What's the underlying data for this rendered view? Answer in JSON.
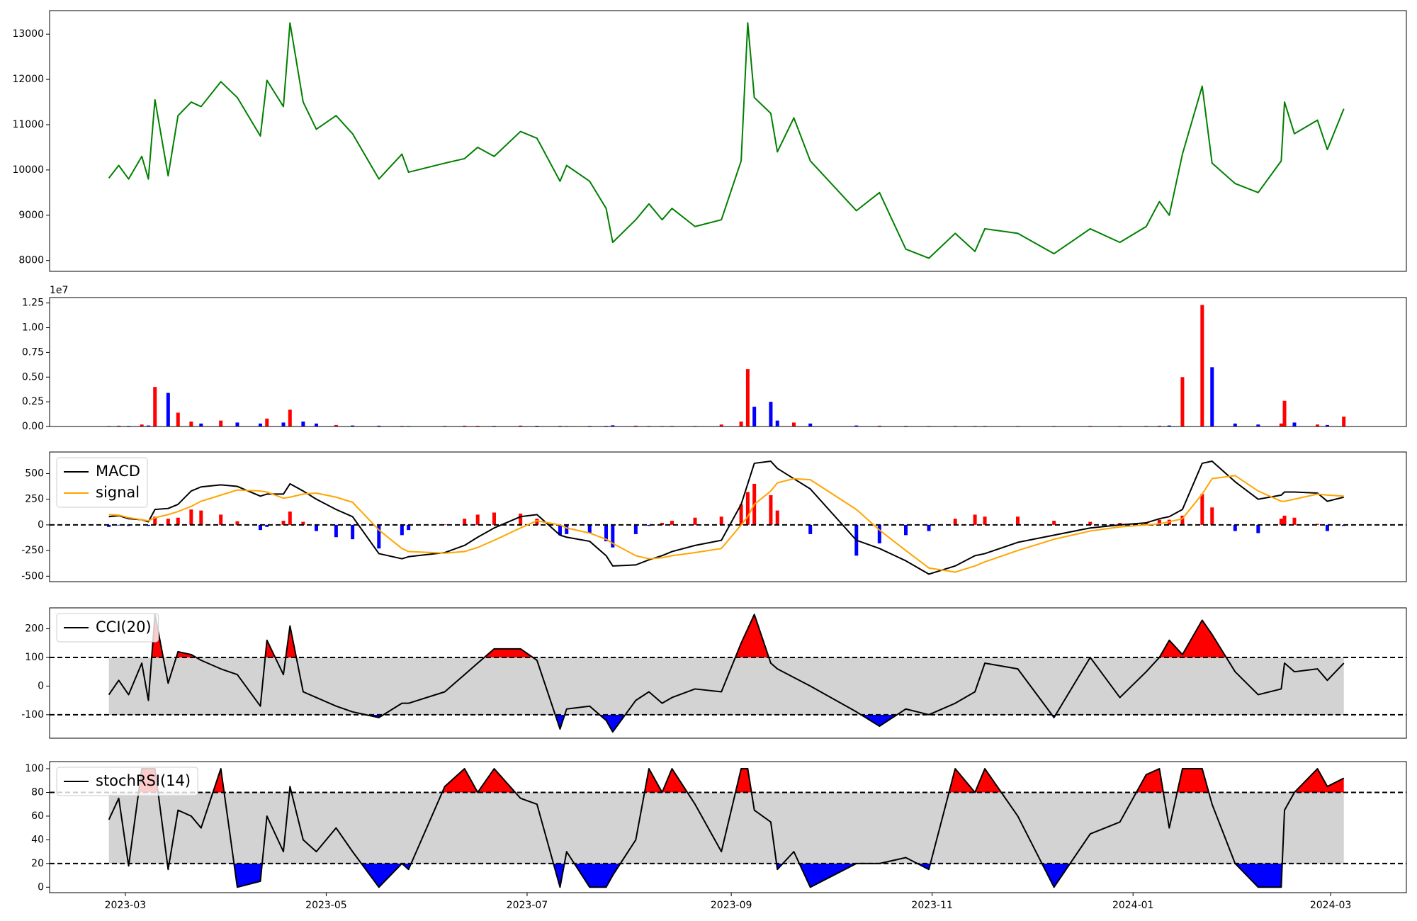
{
  "chart_data": [
    {
      "type": "line",
      "x": [
        "2023-02-24",
        "2023-02-27",
        "2023-03-02",
        "2023-03-06",
        "2023-03-08",
        "2023-03-10",
        "2023-03-14",
        "2023-03-17",
        "2023-03-21",
        "2023-03-24",
        "2023-03-30",
        "2023-04-04",
        "2023-04-11",
        "2023-04-13",
        "2023-04-18",
        "2023-04-20",
        "2023-04-24",
        "2023-04-28",
        "2023-05-04",
        "2023-05-09",
        "2023-05-17",
        "2023-05-24",
        "2023-05-26",
        "2023-06-06",
        "2023-06-12",
        "2023-06-16",
        "2023-06-21",
        "2023-06-29",
        "2023-07-04",
        "2023-07-11",
        "2023-07-13",
        "2023-07-20",
        "2023-07-25",
        "2023-07-27",
        "2023-08-03",
        "2023-08-07",
        "2023-08-11",
        "2023-08-14",
        "2023-08-21",
        "2023-08-29",
        "2023-09-04",
        "2023-09-06",
        "2023-09-08",
        "2023-09-13",
        "2023-09-15",
        "2023-09-20",
        "2023-09-25",
        "2023-10-09",
        "2023-10-16",
        "2023-10-24",
        "2023-10-31",
        "2023-11-08",
        "2023-11-14",
        "2023-11-17",
        "2023-11-27",
        "2023-12-08",
        "2023-12-19",
        "2023-12-28",
        "2024-01-05",
        "2024-01-09",
        "2024-01-12",
        "2024-01-16",
        "2024-01-22",
        "2024-01-25",
        "2024-02-01",
        "2024-02-08",
        "2024-02-15",
        "2024-02-16",
        "2024-02-19",
        "2024-02-26",
        "2024-02-29",
        "2024-03-05"
      ],
      "values": [
        9820,
        10100,
        9800,
        10300,
        9800,
        11550,
        9870,
        11200,
        11500,
        11400,
        11950,
        11600,
        10750,
        11980,
        11400,
        13250,
        11500,
        10900,
        11200,
        10800,
        9800,
        10350,
        9950,
        10150,
        10250,
        10500,
        10300,
        10850,
        10700,
        9750,
        10100,
        9750,
        9150,
        8400,
        8900,
        9250,
        8900,
        9150,
        8750,
        8900,
        10200,
        13250,
        11600,
        11250,
        10400,
        11150,
        10200,
        9100,
        9500,
        8250,
        8050,
        8600,
        8200,
        8700,
        8600,
        8150,
        8700,
        8400,
        8750,
        9300,
        9000,
        10350,
        11850,
        10150,
        9700,
        9500,
        10200,
        11500,
        10800,
        11100,
        10450,
        11350
      ],
      "color": "#008000",
      "xlim": [
        "2023-02-06",
        "2024-03-24"
      ],
      "ylim": [
        7760,
        13520
      ],
      "yticks": [
        8000,
        9000,
        10000,
        11000,
        12000,
        13000
      ]
    },
    {
      "type": "bar",
      "x": [
        "2023-02-24",
        "2023-02-27",
        "2023-03-02",
        "2023-03-06",
        "2023-03-08",
        "2023-03-10",
        "2023-03-14",
        "2023-03-17",
        "2023-03-21",
        "2023-03-24",
        "2023-03-30",
        "2023-04-04",
        "2023-04-11",
        "2023-04-13",
        "2023-04-18",
        "2023-04-20",
        "2023-04-24",
        "2023-04-28",
        "2023-05-04",
        "2023-05-09",
        "2023-05-17",
        "2023-05-24",
        "2023-05-26",
        "2023-06-06",
        "2023-06-12",
        "2023-06-16",
        "2023-06-21",
        "2023-06-29",
        "2023-07-04",
        "2023-07-11",
        "2023-07-13",
        "2023-07-20",
        "2023-07-25",
        "2023-07-27",
        "2023-08-03",
        "2023-08-07",
        "2023-08-11",
        "2023-08-14",
        "2023-08-21",
        "2023-08-29",
        "2023-09-04",
        "2023-09-06",
        "2023-09-08",
        "2023-09-13",
        "2023-09-15",
        "2023-09-20",
        "2023-09-25",
        "2023-10-09",
        "2023-10-16",
        "2023-10-24",
        "2023-10-31",
        "2023-11-08",
        "2023-11-14",
        "2023-11-17",
        "2023-11-27",
        "2023-12-08",
        "2023-12-19",
        "2023-12-28",
        "2024-01-05",
        "2024-01-09",
        "2024-01-12",
        "2024-01-16",
        "2024-01-22",
        "2024-01-25",
        "2024-02-01",
        "2024-02-08",
        "2024-02-15",
        "2024-02-16",
        "2024-02-19",
        "2024-02-26",
        "2024-02-29",
        "2024-03-05"
      ],
      "values": [
        50000,
        80000,
        60000,
        200000,
        100000,
        4000000,
        3400000,
        1400000,
        500000,
        300000,
        600000,
        400000,
        300000,
        800000,
        400000,
        1700000,
        500000,
        300000,
        150000,
        100000,
        80000,
        60000,
        50000,
        60000,
        80000,
        70000,
        60000,
        90000,
        70000,
        60000,
        50000,
        60000,
        60000,
        120000,
        80000,
        60000,
        50000,
        60000,
        50000,
        200000,
        500000,
        5800000,
        2000000,
        2500000,
        600000,
        400000,
        300000,
        100000,
        80000,
        60000,
        50000,
        60000,
        50000,
        60000,
        50000,
        50000,
        60000,
        50000,
        60000,
        80000,
        100000,
        5000000,
        12300000,
        6000000,
        300000,
        200000,
        300000,
        2600000,
        400000,
        200000,
        150000,
        1000000
      ],
      "colors": {
        "up": "#ff0000",
        "down": "#0000ff"
      },
      "xlim": [
        "2023-02-06",
        "2024-03-24"
      ],
      "ylim": [
        0,
        13050000
      ],
      "yticks": [
        {
          "value": 0,
          "label": "0.00"
        },
        {
          "value": 2500000,
          "label": "0.25"
        },
        {
          "value": 5000000,
          "label": "0.50"
        },
        {
          "value": 7500000,
          "label": "0.75"
        },
        {
          "value": 10000000,
          "label": "1.00"
        },
        {
          "value": 12500000,
          "label": "1.25"
        }
      ],
      "offset_label": "1e7"
    },
    {
      "type": "macd",
      "x": [
        "2023-02-24",
        "2023-02-27",
        "2023-03-02",
        "2023-03-06",
        "2023-03-08",
        "2023-03-10",
        "2023-03-14",
        "2023-03-17",
        "2023-03-21",
        "2023-03-24",
        "2023-03-30",
        "2023-04-04",
        "2023-04-11",
        "2023-04-13",
        "2023-04-18",
        "2023-04-20",
        "2023-04-24",
        "2023-04-28",
        "2023-05-04",
        "2023-05-09",
        "2023-05-17",
        "2023-05-24",
        "2023-05-26",
        "2023-06-06",
        "2023-06-12",
        "2023-06-16",
        "2023-06-21",
        "2023-06-29",
        "2023-07-04",
        "2023-07-11",
        "2023-07-13",
        "2023-07-20",
        "2023-07-25",
        "2023-07-27",
        "2023-08-03",
        "2023-08-07",
        "2023-08-11",
        "2023-08-14",
        "2023-08-21",
        "2023-08-29",
        "2023-09-04",
        "2023-09-06",
        "2023-09-08",
        "2023-09-13",
        "2023-09-15",
        "2023-09-20",
        "2023-09-25",
        "2023-10-09",
        "2023-10-16",
        "2023-10-24",
        "2023-10-31",
        "2023-11-08",
        "2023-11-14",
        "2023-11-17",
        "2023-11-27",
        "2023-12-08",
        "2023-12-19",
        "2023-12-28",
        "2024-01-05",
        "2024-01-09",
        "2024-01-12",
        "2024-01-16",
        "2024-01-22",
        "2024-01-25",
        "2024-02-01",
        "2024-02-08",
        "2024-02-15",
        "2024-02-16",
        "2024-02-19",
        "2024-02-26",
        "2024-02-29",
        "2024-03-05"
      ],
      "series": [
        {
          "name": "MACD",
          "color": "#000000",
          "values": [
            80,
            90,
            60,
            50,
            30,
            150,
            160,
            200,
            330,
            370,
            390,
            375,
            280,
            300,
            300,
            400,
            330,
            250,
            150,
            80,
            -280,
            -330,
            -310,
            -270,
            -200,
            -120,
            -30,
            80,
            100,
            -100,
            -120,
            -160,
            -300,
            -400,
            -390,
            -340,
            -300,
            -260,
            -200,
            -150,
            200,
            400,
            600,
            620,
            550,
            450,
            350,
            -150,
            -230,
            -350,
            -480,
            -400,
            -300,
            -280,
            -170,
            -100,
            -30,
            0,
            20,
            60,
            80,
            150,
            600,
            620,
            420,
            250,
            290,
            320,
            320,
            310,
            230,
            270
          ]
        },
        {
          "name": "signal",
          "color": "#ffa500",
          "values": [
            100,
            95,
            70,
            50,
            40,
            70,
            100,
            130,
            180,
            230,
            290,
            340,
            330,
            320,
            260,
            270,
            300,
            310,
            270,
            220,
            -50,
            -230,
            -260,
            -275,
            -260,
            -220,
            -150,
            -30,
            40,
            0,
            -30,
            -80,
            -140,
            -180,
            -300,
            -330,
            -320,
            -300,
            -270,
            -230,
            0,
            80,
            200,
            330,
            410,
            450,
            440,
            150,
            -50,
            -250,
            -420,
            -460,
            -400,
            -360,
            -250,
            -140,
            -60,
            -20,
            0,
            10,
            30,
            60,
            300,
            450,
            480,
            330,
            230,
            230,
            250,
            300,
            290,
            280
          ]
        }
      ],
      "histogram": {
        "values": [
          -20,
          -5,
          -10,
          0,
          -10,
          80,
          60,
          70,
          150,
          140,
          100,
          35,
          -50,
          -20,
          40,
          130,
          30,
          -60,
          -120,
          -140,
          -230,
          -100,
          -50,
          5,
          60,
          100,
          120,
          110,
          60,
          -100,
          -90,
          -80,
          -160,
          -220,
          -90,
          -10,
          20,
          40,
          70,
          80,
          200,
          320,
          400,
          290,
          140,
          0,
          -90,
          -300,
          -180,
          -100,
          -60,
          60,
          100,
          80,
          80,
          40,
          30,
          20,
          20,
          50,
          50,
          90,
          300,
          170,
          -60,
          -80,
          60,
          90,
          70,
          10,
          -60,
          -10
        ],
        "colors": {
          "positive": "#ff0000",
          "negative": "#0000ff"
        }
      },
      "thresholds": [
        0
      ],
      "xlim": [
        "2023-02-06",
        "2024-03-24"
      ],
      "ylim": [
        -553,
        710
      ],
      "yticks": [
        -500,
        -250,
        0,
        250,
        500
      ],
      "legend": "upper left"
    },
    {
      "type": "band",
      "x": [
        "2023-02-24",
        "2023-02-27",
        "2023-03-02",
        "2023-03-06",
        "2023-03-08",
        "2023-03-10",
        "2023-03-14",
        "2023-03-17",
        "2023-03-21",
        "2023-03-24",
        "2023-03-30",
        "2023-04-04",
        "2023-04-11",
        "2023-04-13",
        "2023-04-18",
        "2023-04-20",
        "2023-04-24",
        "2023-04-28",
        "2023-05-04",
        "2023-05-09",
        "2023-05-17",
        "2023-05-24",
        "2023-05-26",
        "2023-06-06",
        "2023-06-12",
        "2023-06-16",
        "2023-06-21",
        "2023-06-29",
        "2023-07-04",
        "2023-07-11",
        "2023-07-13",
        "2023-07-20",
        "2023-07-25",
        "2023-07-27",
        "2023-08-03",
        "2023-08-07",
        "2023-08-11",
        "2023-08-14",
        "2023-08-21",
        "2023-08-29",
        "2023-09-04",
        "2023-09-06",
        "2023-09-08",
        "2023-09-13",
        "2023-09-15",
        "2023-09-20",
        "2023-09-25",
        "2023-10-09",
        "2023-10-16",
        "2023-10-24",
        "2023-10-31",
        "2023-11-08",
        "2023-11-14",
        "2023-11-17",
        "2023-11-27",
        "2023-12-08",
        "2023-12-19",
        "2023-12-28",
        "2024-01-05",
        "2024-01-09",
        "2024-01-12",
        "2024-01-16",
        "2024-01-22",
        "2024-01-25",
        "2024-02-01",
        "2024-02-08",
        "2024-02-15",
        "2024-02-16",
        "2024-02-19",
        "2024-02-26",
        "2024-02-29",
        "2024-03-05"
      ],
      "series": [
        {
          "name": "CCI(20)",
          "color": "#000000",
          "values": [
            -30,
            20,
            -30,
            80,
            -50,
            250,
            10,
            120,
            110,
            90,
            60,
            40,
            -70,
            160,
            40,
            210,
            -20,
            -40,
            -70,
            -90,
            -110,
            -60,
            -60,
            -20,
            40,
            80,
            130,
            130,
            90,
            -150,
            -80,
            -70,
            -120,
            -160,
            -50,
            -20,
            -60,
            -40,
            -10,
            -20,
            150,
            200,
            250,
            80,
            60,
            30,
            0,
            -90,
            -140,
            -80,
            -100,
            -60,
            -20,
            80,
            60,
            -110,
            100,
            -40,
            50,
            100,
            160,
            110,
            230,
            180,
            50,
            -30,
            -10,
            80,
            50,
            60,
            20,
            80
          ]
        }
      ],
      "thresholds": [
        -100,
        100
      ],
      "fill": {
        "band": "#d3d3d3",
        "above": "#ff0000",
        "below": "#0000ff"
      },
      "xlim": [
        "2023-02-06",
        "2024-03-24"
      ],
      "ylim": [
        -182,
        273
      ],
      "yticks": [
        -100,
        0,
        100,
        200
      ],
      "legend": "upper left"
    },
    {
      "type": "band",
      "x": [
        "2023-02-24",
        "2023-02-27",
        "2023-03-02",
        "2023-03-06",
        "2023-03-08",
        "2023-03-10",
        "2023-03-14",
        "2023-03-17",
        "2023-03-21",
        "2023-03-24",
        "2023-03-30",
        "2023-04-04",
        "2023-04-11",
        "2023-04-13",
        "2023-04-18",
        "2023-04-20",
        "2023-04-24",
        "2023-04-28",
        "2023-05-04",
        "2023-05-09",
        "2023-05-17",
        "2023-05-24",
        "2023-05-26",
        "2023-06-06",
        "2023-06-12",
        "2023-06-16",
        "2023-06-21",
        "2023-06-29",
        "2023-07-04",
        "2023-07-11",
        "2023-07-13",
        "2023-07-20",
        "2023-07-25",
        "2023-07-27",
        "2023-08-03",
        "2023-08-07",
        "2023-08-11",
        "2023-08-14",
        "2023-08-21",
        "2023-08-29",
        "2023-09-04",
        "2023-09-06",
        "2023-09-08",
        "2023-09-13",
        "2023-09-15",
        "2023-09-20",
        "2023-09-25",
        "2023-10-09",
        "2023-10-16",
        "2023-10-24",
        "2023-10-31",
        "2023-11-08",
        "2023-11-14",
        "2023-11-17",
        "2023-11-27",
        "2023-12-08",
        "2023-12-19",
        "2023-12-28",
        "2024-01-05",
        "2024-01-09",
        "2024-01-12",
        "2024-01-16",
        "2024-01-22",
        "2024-01-25",
        "2024-02-01",
        "2024-02-08",
        "2024-02-15",
        "2024-02-16",
        "2024-02-19",
        "2024-02-26",
        "2024-02-29",
        "2024-03-05"
      ],
      "series": [
        {
          "name": "stochRSI(14)",
          "color": "#000000",
          "values": [
            57,
            75,
            18,
            100,
            100,
            100,
            15,
            65,
            60,
            50,
            100,
            0,
            5,
            60,
            30,
            85,
            40,
            30,
            50,
            30,
            0,
            20,
            15,
            85,
            100,
            80,
            100,
            75,
            70,
            0,
            30,
            0,
            0,
            10,
            40,
            100,
            80,
            100,
            70,
            30,
            100,
            100,
            65,
            55,
            15,
            30,
            0,
            20,
            20,
            25,
            15,
            100,
            80,
            100,
            60,
            0,
            45,
            55,
            95,
            100,
            50,
            100,
            100,
            70,
            20,
            0,
            0,
            65,
            80,
            100,
            85,
            92
          ]
        }
      ],
      "thresholds": [
        20,
        80
      ],
      "fill": {
        "band": "#d3d3d3",
        "above": "#ff0000",
        "below": "#0000ff"
      },
      "xlim": [
        "2023-02-06",
        "2024-03-24"
      ],
      "ylim": [
        -4.6,
        106
      ],
      "yticks": [
        0,
        20,
        40,
        60,
        80,
        100
      ],
      "legend": "upper left",
      "xticks": [
        {
          "value": "2023-03-01",
          "label": "2023-03"
        },
        {
          "value": "2023-05-01",
          "label": "2023-05"
        },
        {
          "value": "2023-07-01",
          "label": "2023-07"
        },
        {
          "value": "2023-09-01",
          "label": "2023-09"
        },
        {
          "value": "2023-11-01",
          "label": "2023-11"
        },
        {
          "value": "2024-01-01",
          "label": "2024-01"
        },
        {
          "value": "2024-03-01",
          "label": "2024-03"
        }
      ]
    }
  ]
}
